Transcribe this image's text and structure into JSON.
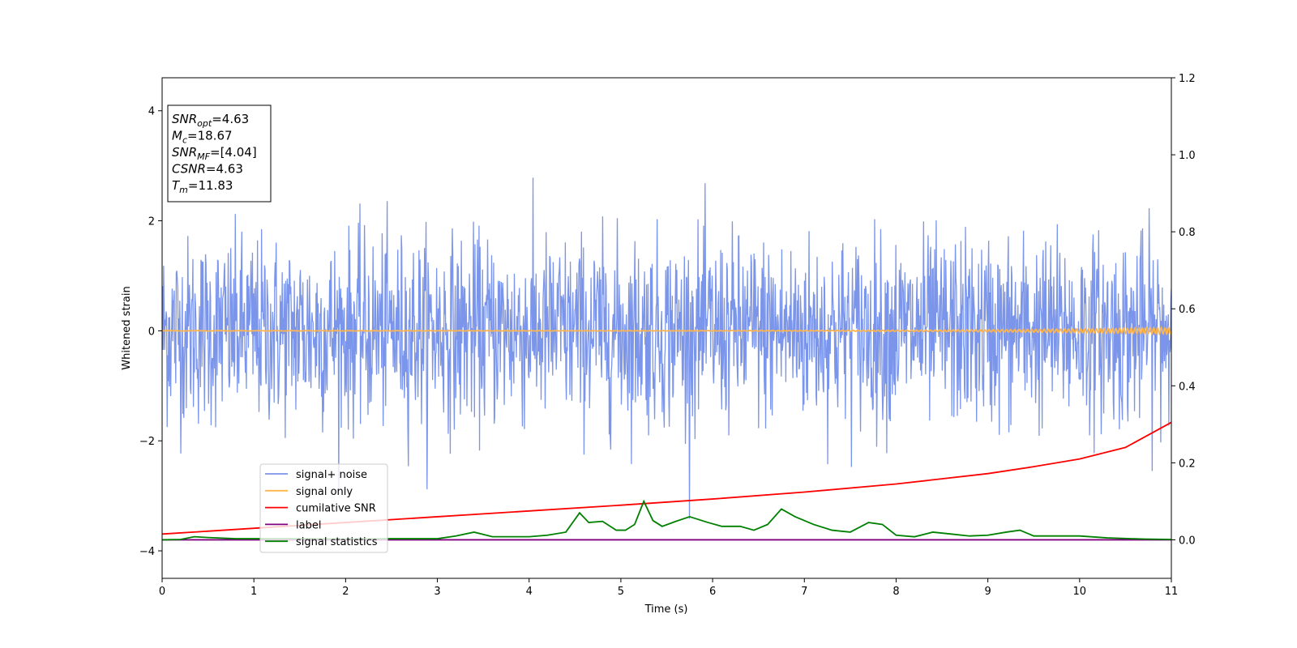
{
  "chart_data": {
    "type": "line",
    "xlabel": "Time (s)",
    "ylabel_left": "Whitened strain",
    "ylabel_right": "",
    "xlim": [
      0,
      11
    ],
    "ylim_left": [
      -4.5,
      4.6
    ],
    "ylim_right": [
      -0.1,
      1.2
    ],
    "xticks": [
      0,
      1,
      2,
      3,
      4,
      5,
      6,
      7,
      8,
      9,
      10,
      11
    ],
    "yticks_left": [
      -4,
      -2,
      0,
      2,
      4
    ],
    "yticks_right": [
      "0.0",
      "0.2",
      "0.4",
      "0.6",
      "0.8",
      "1.0",
      "1.2"
    ],
    "grid": false,
    "legend_position": "lower-left",
    "series": [
      {
        "name": "signal+ noise",
        "color": "#6482e6",
        "axis": "left",
        "kind": "noise",
        "sigma": 0.85,
        "min": -3.7,
        "max": 3.35,
        "n_samples": 2000
      },
      {
        "name": "signal only",
        "color": "#ffb54a",
        "axis": "left",
        "kind": "chirp",
        "amp_start": 0.003,
        "amp_end": 0.06,
        "f_start": 3,
        "f_end": 14
      },
      {
        "name": "cumilative SNR",
        "color": "#ff0000",
        "axis": "right",
        "x": [
          0,
          1,
          2,
          3,
          4,
          5,
          6,
          7,
          8,
          9,
          9.5,
          10,
          10.5,
          11
        ],
        "y": [
          0.015,
          0.03,
          0.045,
          0.06,
          0.075,
          0.09,
          0.106,
          0.124,
          0.145,
          0.172,
          0.19,
          0.21,
          0.24,
          0.305
        ]
      },
      {
        "name": "label",
        "color": "#800080",
        "axis": "right",
        "x": [
          0,
          11
        ],
        "y": [
          0,
          0
        ]
      },
      {
        "name": "signal statistics",
        "color": "#008000",
        "axis": "right",
        "x": [
          0,
          0.2,
          0.35,
          0.5,
          0.8,
          1.5,
          2.0,
          2.5,
          3.0,
          3.2,
          3.4,
          3.6,
          3.8,
          4.0,
          4.2,
          4.4,
          4.55,
          4.65,
          4.8,
          4.95,
          5.05,
          5.15,
          5.25,
          5.35,
          5.45,
          5.6,
          5.75,
          5.95,
          6.1,
          6.3,
          6.45,
          6.6,
          6.75,
          6.9,
          7.1,
          7.3,
          7.5,
          7.7,
          7.85,
          8.0,
          8.2,
          8.4,
          8.6,
          8.8,
          9.0,
          9.2,
          9.35,
          9.5,
          9.7,
          10.0,
          10.3,
          10.7,
          11.0
        ],
        "y": [
          0,
          0.001,
          0.008,
          0.006,
          0.003,
          0.003,
          0.002,
          0.003,
          0.003,
          0.01,
          0.02,
          0.008,
          0.008,
          0.008,
          0.012,
          0.02,
          0.07,
          0.045,
          0.048,
          0.025,
          0.025,
          0.04,
          0.1,
          0.05,
          0.035,
          0.048,
          0.06,
          0.045,
          0.035,
          0.035,
          0.025,
          0.04,
          0.08,
          0.06,
          0.04,
          0.025,
          0.02,
          0.045,
          0.04,
          0.012,
          0.008,
          0.02,
          0.015,
          0.01,
          0.012,
          0.02,
          0.025,
          0.01,
          0.01,
          0.01,
          0.005,
          0.002,
          0.001
        ]
      }
    ],
    "annotation_box": [
      {
        "sym": "SNR",
        "sub": "opt",
        "value": "=4.63"
      },
      {
        "sym": "M",
        "sub": "c",
        "value": "=18.67"
      },
      {
        "sym": "SNR",
        "sub": "MF",
        "value": "=[4.04]"
      },
      {
        "sym": "CSNR",
        "sub": "",
        "value": "=4.63"
      },
      {
        "sym": "T",
        "sub": "m",
        "value": "=11.83"
      }
    ]
  }
}
